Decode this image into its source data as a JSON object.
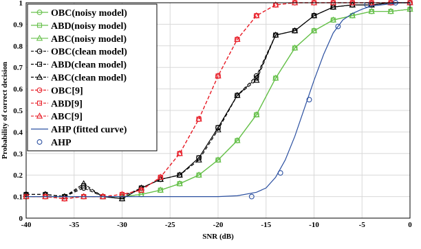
{
  "chart_data": {
    "type": "line",
    "title": "",
    "xlabel": "SNR (dB)",
    "ylabel": "Probability of correct decision",
    "xlim": [
      -40,
      0
    ],
    "ylim": [
      0,
      1
    ],
    "xticks": [
      -40,
      -35,
      -30,
      -25,
      -20,
      -15,
      -10,
      -5,
      0
    ],
    "yticks": [
      0,
      0.1,
      0.2,
      0.3,
      0.4,
      0.5,
      0.6,
      0.7,
      0.8,
      0.9,
      1
    ],
    "grid": true,
    "legend_position": "top-left",
    "series": [
      {
        "name": "OBC(noisy model)",
        "color": "#66c04a",
        "dash": "solid",
        "marker": "circle",
        "x": [
          -40,
          -38,
          -36,
          -34,
          -32,
          -30,
          -28,
          -26,
          -24,
          -22,
          -20,
          -18,
          -16,
          -14,
          -12,
          -10,
          -8,
          -6,
          -4,
          -2,
          0
        ],
        "y": [
          0.1,
          0.1,
          0.1,
          0.1,
          0.1,
          0.1,
          0.11,
          0.13,
          0.16,
          0.2,
          0.27,
          0.36,
          0.48,
          0.65,
          0.79,
          0.87,
          0.92,
          0.94,
          0.96,
          0.96,
          0.97
        ]
      },
      {
        "name": "ABD(noisy model)",
        "color": "#66c04a",
        "dash": "solid",
        "marker": "square",
        "x": [
          -40,
          -38,
          -36,
          -34,
          -32,
          -30,
          -28,
          -26,
          -24,
          -22,
          -20,
          -18,
          -16,
          -14,
          -12,
          -10,
          -8,
          -6,
          -4,
          -2,
          0
        ],
        "y": [
          0.1,
          0.1,
          0.1,
          0.1,
          0.1,
          0.1,
          0.11,
          0.13,
          0.16,
          0.2,
          0.27,
          0.36,
          0.48,
          0.65,
          0.79,
          0.87,
          0.92,
          0.94,
          0.96,
          0.96,
          0.97
        ]
      },
      {
        "name": "ABC(noisy model)",
        "color": "#66c04a",
        "dash": "solid",
        "marker": "triangle",
        "x": [
          -40,
          -38,
          -36,
          -34,
          -32,
          -30,
          -28,
          -26,
          -24,
          -22,
          -20,
          -18,
          -16,
          -14,
          -12,
          -10,
          -8,
          -6,
          -4,
          -2,
          0
        ],
        "y": [
          0.1,
          0.1,
          0.1,
          0.1,
          0.1,
          0.1,
          0.11,
          0.13,
          0.16,
          0.2,
          0.27,
          0.36,
          0.48,
          0.65,
          0.79,
          0.87,
          0.92,
          0.94,
          0.96,
          0.96,
          0.97
        ]
      },
      {
        "name": "OBC(clean model)",
        "color": "#000000",
        "dash": "dashed",
        "marker": "circle",
        "x": [
          -40,
          -38,
          -36,
          -34,
          -32,
          -30,
          -28,
          -26,
          -24,
          -22,
          -20,
          -18,
          -16,
          -14,
          -12,
          -10,
          -8,
          -6,
          -4,
          -2,
          0
        ],
        "y": [
          0.11,
          0.11,
          0.1,
          0.14,
          0.1,
          0.1,
          0.14,
          0.18,
          0.2,
          0.28,
          0.42,
          0.57,
          0.66,
          0.85,
          0.87,
          0.94,
          0.98,
          0.99,
          0.99,
          1.0,
          1.0
        ]
      },
      {
        "name": "ABD(clean model)",
        "color": "#000000",
        "dash": "dashed",
        "marker": "square",
        "x": [
          -40,
          -38,
          -36,
          -34,
          -32,
          -30,
          -28,
          -26,
          -24,
          -22,
          -20,
          -18,
          -16,
          -14,
          -12,
          -10,
          -8,
          -6,
          -4,
          -2,
          0
        ],
        "y": [
          0.11,
          0.11,
          0.1,
          0.15,
          0.1,
          0.09,
          0.14,
          0.18,
          0.2,
          0.28,
          0.42,
          0.57,
          0.65,
          0.85,
          0.87,
          0.94,
          0.98,
          0.99,
          0.99,
          1.0,
          1.0
        ]
      },
      {
        "name": "ABC(clean model)",
        "color": "#000000",
        "dash": "dashed",
        "marker": "triangle",
        "x": [
          -40,
          -38,
          -36,
          -34,
          -32,
          -30,
          -28,
          -26,
          -24,
          -22,
          -20,
          -18,
          -16,
          -14,
          -12,
          -10,
          -8,
          -6,
          -4,
          -2,
          0
        ],
        "y": [
          0.11,
          0.11,
          0.1,
          0.16,
          0.1,
          0.09,
          0.14,
          0.18,
          0.2,
          0.27,
          0.41,
          0.57,
          0.64,
          0.85,
          0.87,
          0.94,
          0.98,
          0.99,
          0.99,
          1.0,
          1.0
        ]
      },
      {
        "name": "OBC[9]",
        "color": "#e8202a",
        "dash": "dashed",
        "marker": "circle",
        "x": [
          -40,
          -38,
          -36,
          -34,
          -32,
          -30,
          -28,
          -26,
          -24,
          -22,
          -20,
          -18,
          -16,
          -14,
          -12,
          -10,
          -8,
          -6,
          -4,
          -2,
          0
        ],
        "y": [
          0.1,
          0.1,
          0.09,
          0.1,
          0.1,
          0.11,
          0.13,
          0.19,
          0.3,
          0.46,
          0.66,
          0.83,
          0.94,
          0.99,
          1.0,
          1.0,
          1.0,
          1.0,
          1.0,
          1.0,
          1.0
        ]
      },
      {
        "name": "ABD[9]",
        "color": "#e8202a",
        "dash": "dashed",
        "marker": "square",
        "x": [
          -40,
          -38,
          -36,
          -34,
          -32,
          -30,
          -28,
          -26,
          -24,
          -22,
          -20,
          -18,
          -16,
          -14,
          -12,
          -10,
          -8,
          -6,
          -4,
          -2,
          0
        ],
        "y": [
          0.1,
          0.1,
          0.09,
          0.1,
          0.1,
          0.11,
          0.13,
          0.19,
          0.3,
          0.46,
          0.66,
          0.83,
          0.94,
          0.99,
          1.0,
          1.0,
          1.0,
          1.0,
          1.0,
          1.0,
          1.0
        ]
      },
      {
        "name": "ABC[9]",
        "color": "#e8202a",
        "dash": "dashed",
        "marker": "triangle",
        "x": [
          -40,
          -38,
          -36,
          -34,
          -32,
          -30,
          -28,
          -26,
          -24,
          -22,
          -20,
          -18,
          -16,
          -14,
          -12,
          -10,
          -8,
          -6,
          -4,
          -2,
          0
        ],
        "y": [
          0.1,
          0.1,
          0.09,
          0.1,
          0.1,
          0.11,
          0.13,
          0.19,
          0.3,
          0.46,
          0.66,
          0.83,
          0.94,
          0.99,
          1.0,
          1.0,
          1.0,
          1.0,
          1.0,
          1.0,
          1.0
        ]
      },
      {
        "name": "AHP (fitted curve)",
        "color": "#2a4fa0",
        "dash": "solid",
        "marker": "none",
        "x": [
          -40,
          -30,
          -25,
          -20,
          -18,
          -16,
          -15,
          -14,
          -13,
          -12,
          -11,
          -10,
          -9,
          -8,
          -7,
          -6,
          -5,
          -4,
          -3,
          -2,
          -1,
          0
        ],
        "y": [
          0.1,
          0.1,
          0.1,
          0.1,
          0.104,
          0.12,
          0.14,
          0.19,
          0.27,
          0.38,
          0.51,
          0.64,
          0.76,
          0.86,
          0.92,
          0.95,
          0.97,
          0.985,
          0.99,
          0.995,
          1.0,
          1.0
        ]
      },
      {
        "name": "AHP",
        "color": "#2a4fa0",
        "dash": "none",
        "marker": "circle",
        "x": [
          -16.5,
          -13.5,
          -10.5,
          -7.5,
          -4.5,
          -1.5
        ],
        "y": [
          0.1,
          0.21,
          0.55,
          0.89,
          0.99,
          1.0
        ]
      }
    ]
  }
}
